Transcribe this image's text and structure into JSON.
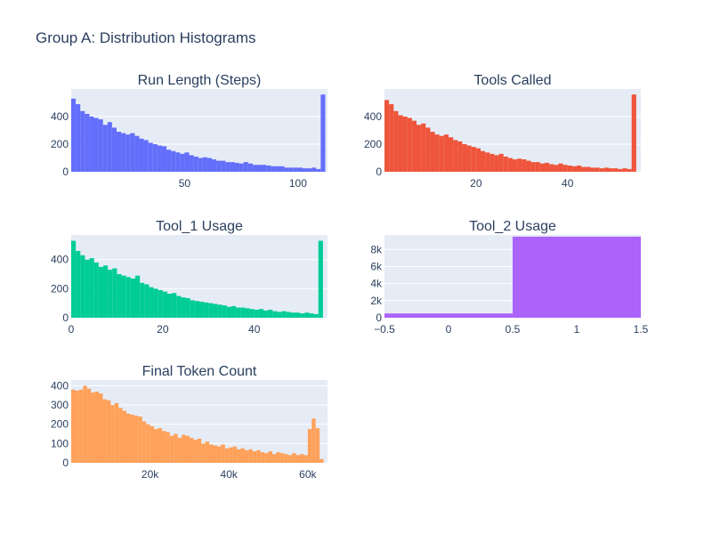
{
  "title": "Group A: Distribution Histograms",
  "chart_data": [
    {
      "type": "bar",
      "title": "Run Length (Steps)",
      "color": "#636efa",
      "xlim": [
        0,
        113
      ],
      "ylim": [
        0,
        600
      ],
      "xticks": [
        {
          "v": 50,
          "label": "50"
        },
        {
          "v": 100,
          "label": "100"
        }
      ],
      "yticks": [
        {
          "v": 0,
          "label": "0"
        },
        {
          "v": 200,
          "label": "200"
        },
        {
          "v": 400,
          "label": "400"
        }
      ],
      "x_start": 0,
      "bin_width": 2,
      "values": [
        530,
        490,
        440,
        420,
        400,
        390,
        380,
        340,
        360,
        320,
        290,
        280,
        270,
        280,
        260,
        240,
        230,
        210,
        200,
        190,
        185,
        160,
        150,
        140,
        130,
        140,
        120,
        110,
        100,
        105,
        100,
        90,
        80,
        80,
        70,
        70,
        65,
        60,
        70,
        60,
        50,
        50,
        50,
        45,
        40,
        40,
        40,
        30,
        30,
        30,
        30,
        25,
        25,
        30,
        20,
        560
      ]
    },
    {
      "type": "bar",
      "title": "Tools Called",
      "color": "#ef553b",
      "xlim": [
        0,
        56
      ],
      "ylim": [
        0,
        600
      ],
      "xticks": [
        {
          "v": 20,
          "label": "20"
        },
        {
          "v": 40,
          "label": "40"
        }
      ],
      "yticks": [
        {
          "v": 0,
          "label": "0"
        },
        {
          "v": 200,
          "label": "200"
        },
        {
          "v": 400,
          "label": "400"
        }
      ],
      "x_start": 0,
      "bin_width": 1,
      "values": [
        520,
        490,
        440,
        410,
        400,
        390,
        370,
        340,
        350,
        320,
        290,
        270,
        260,
        270,
        250,
        230,
        220,
        200,
        190,
        180,
        170,
        150,
        140,
        130,
        120,
        130,
        110,
        100,
        90,
        95,
        90,
        80,
        70,
        70,
        60,
        65,
        55,
        50,
        60,
        50,
        45,
        40,
        45,
        35,
        35,
        30,
        30,
        25,
        30,
        25,
        25,
        20,
        25,
        20,
        560
      ]
    },
    {
      "type": "bar",
      "title": "Tool_1 Usage",
      "color": "#00cc96",
      "xlim": [
        0,
        56
      ],
      "ylim": [
        0,
        570
      ],
      "xticks": [
        {
          "v": 0,
          "label": "0"
        },
        {
          "v": 20,
          "label": "20"
        },
        {
          "v": 40,
          "label": "40"
        }
      ],
      "yticks": [
        {
          "v": 0,
          "label": "0"
        },
        {
          "v": 200,
          "label": "200"
        },
        {
          "v": 400,
          "label": "400"
        }
      ],
      "x_start": 0,
      "bin_width": 1,
      "values": [
        530,
        460,
        430,
        400,
        410,
        380,
        350,
        360,
        330,
        340,
        300,
        290,
        280,
        270,
        290,
        240,
        230,
        210,
        200,
        190,
        180,
        165,
        170,
        150,
        140,
        135,
        120,
        115,
        110,
        105,
        100,
        95,
        90,
        85,
        75,
        80,
        70,
        70,
        65,
        60,
        55,
        60,
        50,
        55,
        45,
        40,
        45,
        40,
        35,
        35,
        30,
        35,
        30,
        25,
        530
      ]
    },
    {
      "type": "bar",
      "title": "Tool_2 Usage",
      "color": "#ab63fa",
      "xlim": [
        -0.5,
        1.5
      ],
      "ylim": [
        0,
        9700
      ],
      "xticks": [
        {
          "v": -0.5,
          "label": "−0.5"
        },
        {
          "v": 0,
          "label": "0"
        },
        {
          "v": 0.5,
          "label": "0.5"
        },
        {
          "v": 1,
          "label": "1"
        },
        {
          "v": 1.5,
          "label": "1.5"
        }
      ],
      "yticks": [
        {
          "v": 0,
          "label": "0"
        },
        {
          "v": 2000,
          "label": "2k"
        },
        {
          "v": 4000,
          "label": "4k"
        },
        {
          "v": 6000,
          "label": "6k"
        },
        {
          "v": 8000,
          "label": "8k"
        }
      ],
      "x_start": -0.5,
      "bin_width": 1,
      "values": [
        500,
        9500
      ]
    },
    {
      "type": "bar",
      "title": "Final Token Count",
      "color": "#ffa15a",
      "xlim": [
        0,
        65000
      ],
      "ylim": [
        0,
        430
      ],
      "xticks": [
        {
          "v": 20000,
          "label": "20k"
        },
        {
          "v": 40000,
          "label": "40k"
        },
        {
          "v": 60000,
          "label": "60k"
        }
      ],
      "yticks": [
        {
          "v": 0,
          "label": "0"
        },
        {
          "v": 100,
          "label": "100"
        },
        {
          "v": 200,
          "label": "200"
        },
        {
          "v": 300,
          "label": "300"
        },
        {
          "v": 400,
          "label": "400"
        }
      ],
      "x_start": 0,
      "bin_width": 1000,
      "values": [
        380,
        375,
        380,
        400,
        385,
        365,
        370,
        360,
        330,
        325,
        300,
        310,
        285,
        270,
        255,
        250,
        245,
        240,
        215,
        200,
        190,
        175,
        180,
        165,
        160,
        140,
        150,
        130,
        145,
        140,
        130,
        120,
        125,
        100,
        110,
        95,
        90,
        85,
        95,
        75,
        80,
        85,
        70,
        75,
        65,
        70,
        60,
        65,
        55,
        50,
        60,
        45,
        55,
        50,
        45,
        40,
        50,
        40,
        45,
        40,
        175,
        230,
        180,
        20
      ]
    }
  ]
}
